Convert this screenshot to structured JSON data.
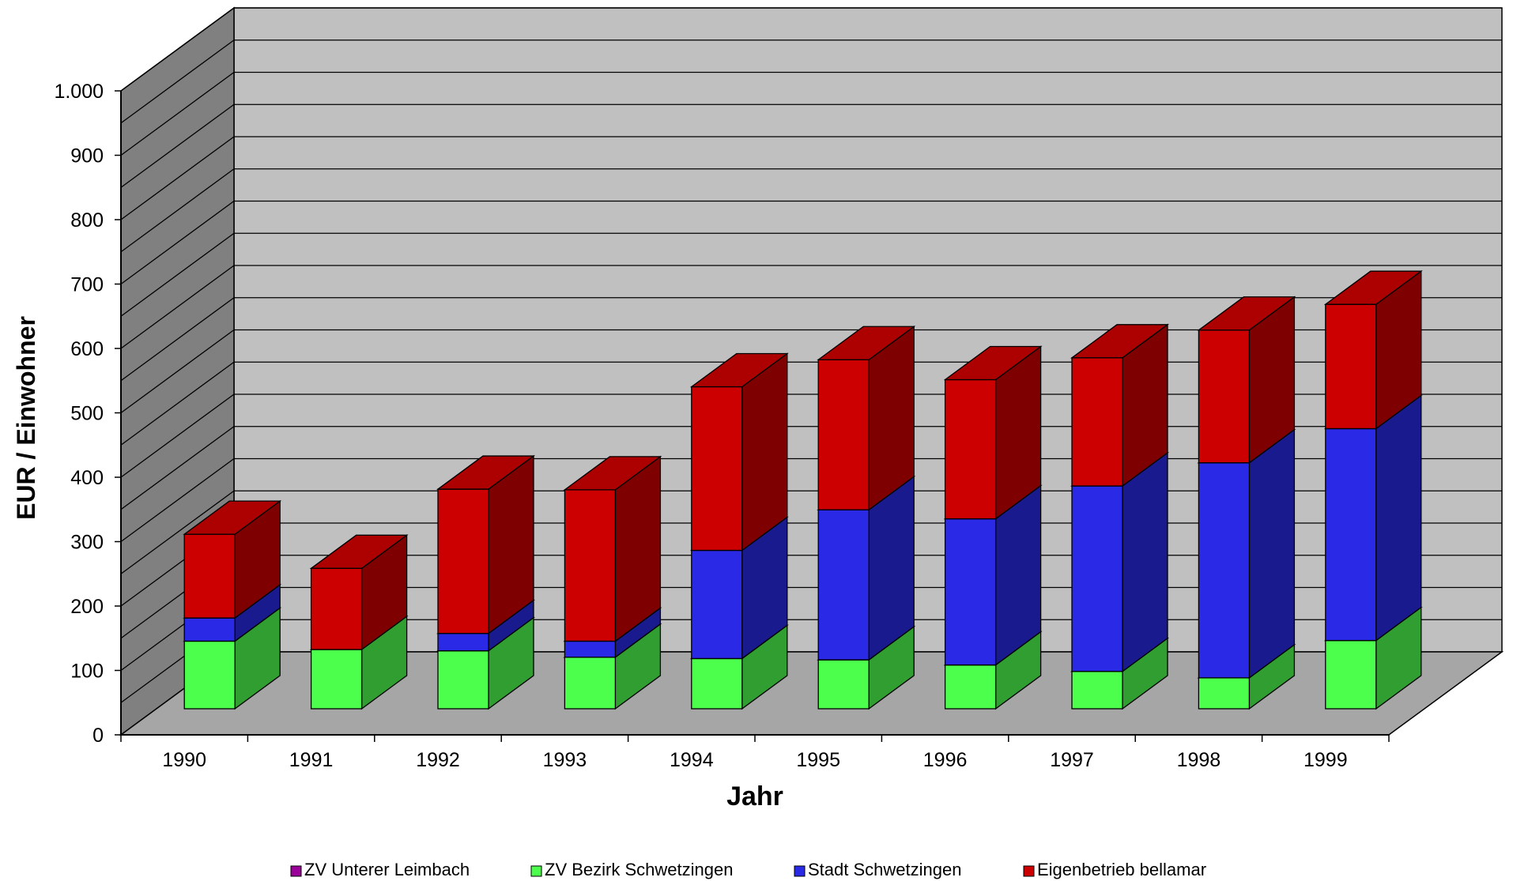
{
  "chart_data": {
    "type": "bar",
    "stacked": true,
    "three_d": true,
    "title": "",
    "xlabel": "Jahr",
    "ylabel": "EUR / Einwohner",
    "ylim": [
      0,
      1000
    ],
    "yticks": [
      0,
      100,
      200,
      300,
      400,
      500,
      600,
      700,
      800,
      900,
      1000
    ],
    "ytick_labels": [
      "0",
      "100",
      "200",
      "300",
      "400",
      "500",
      "600",
      "700",
      "800",
      "900",
      "1.000"
    ],
    "categories": [
      "1990",
      "1991",
      "1992",
      "1993",
      "1994",
      "1995",
      "1996",
      "1997",
      "1998",
      "1999"
    ],
    "grid": true,
    "legend_position": "bottom",
    "series": [
      {
        "name": "ZV  Unterer Leimbach",
        "color": "#9b009b",
        "values": [
          0,
          0,
          0,
          0,
          0,
          0,
          0,
          0,
          0,
          0
        ]
      },
      {
        "name": "ZV  Bezirk Schwetzingen",
        "color": "#4dff4d",
        "values": [
          105,
          92,
          90,
          80,
          78,
          76,
          68,
          58,
          48,
          106
        ]
      },
      {
        "name": "Stadt  Schwetzingen",
        "color": "#2a2ae6",
        "values": [
          36,
          0,
          27,
          25,
          168,
          233,
          227,
          288,
          334,
          329
        ]
      },
      {
        "name": "Eigenbetrieb bellamar",
        "color": "#cc0000",
        "values": [
          130,
          126,
          224,
          235,
          254,
          233,
          216,
          199,
          206,
          193
        ]
      }
    ]
  }
}
